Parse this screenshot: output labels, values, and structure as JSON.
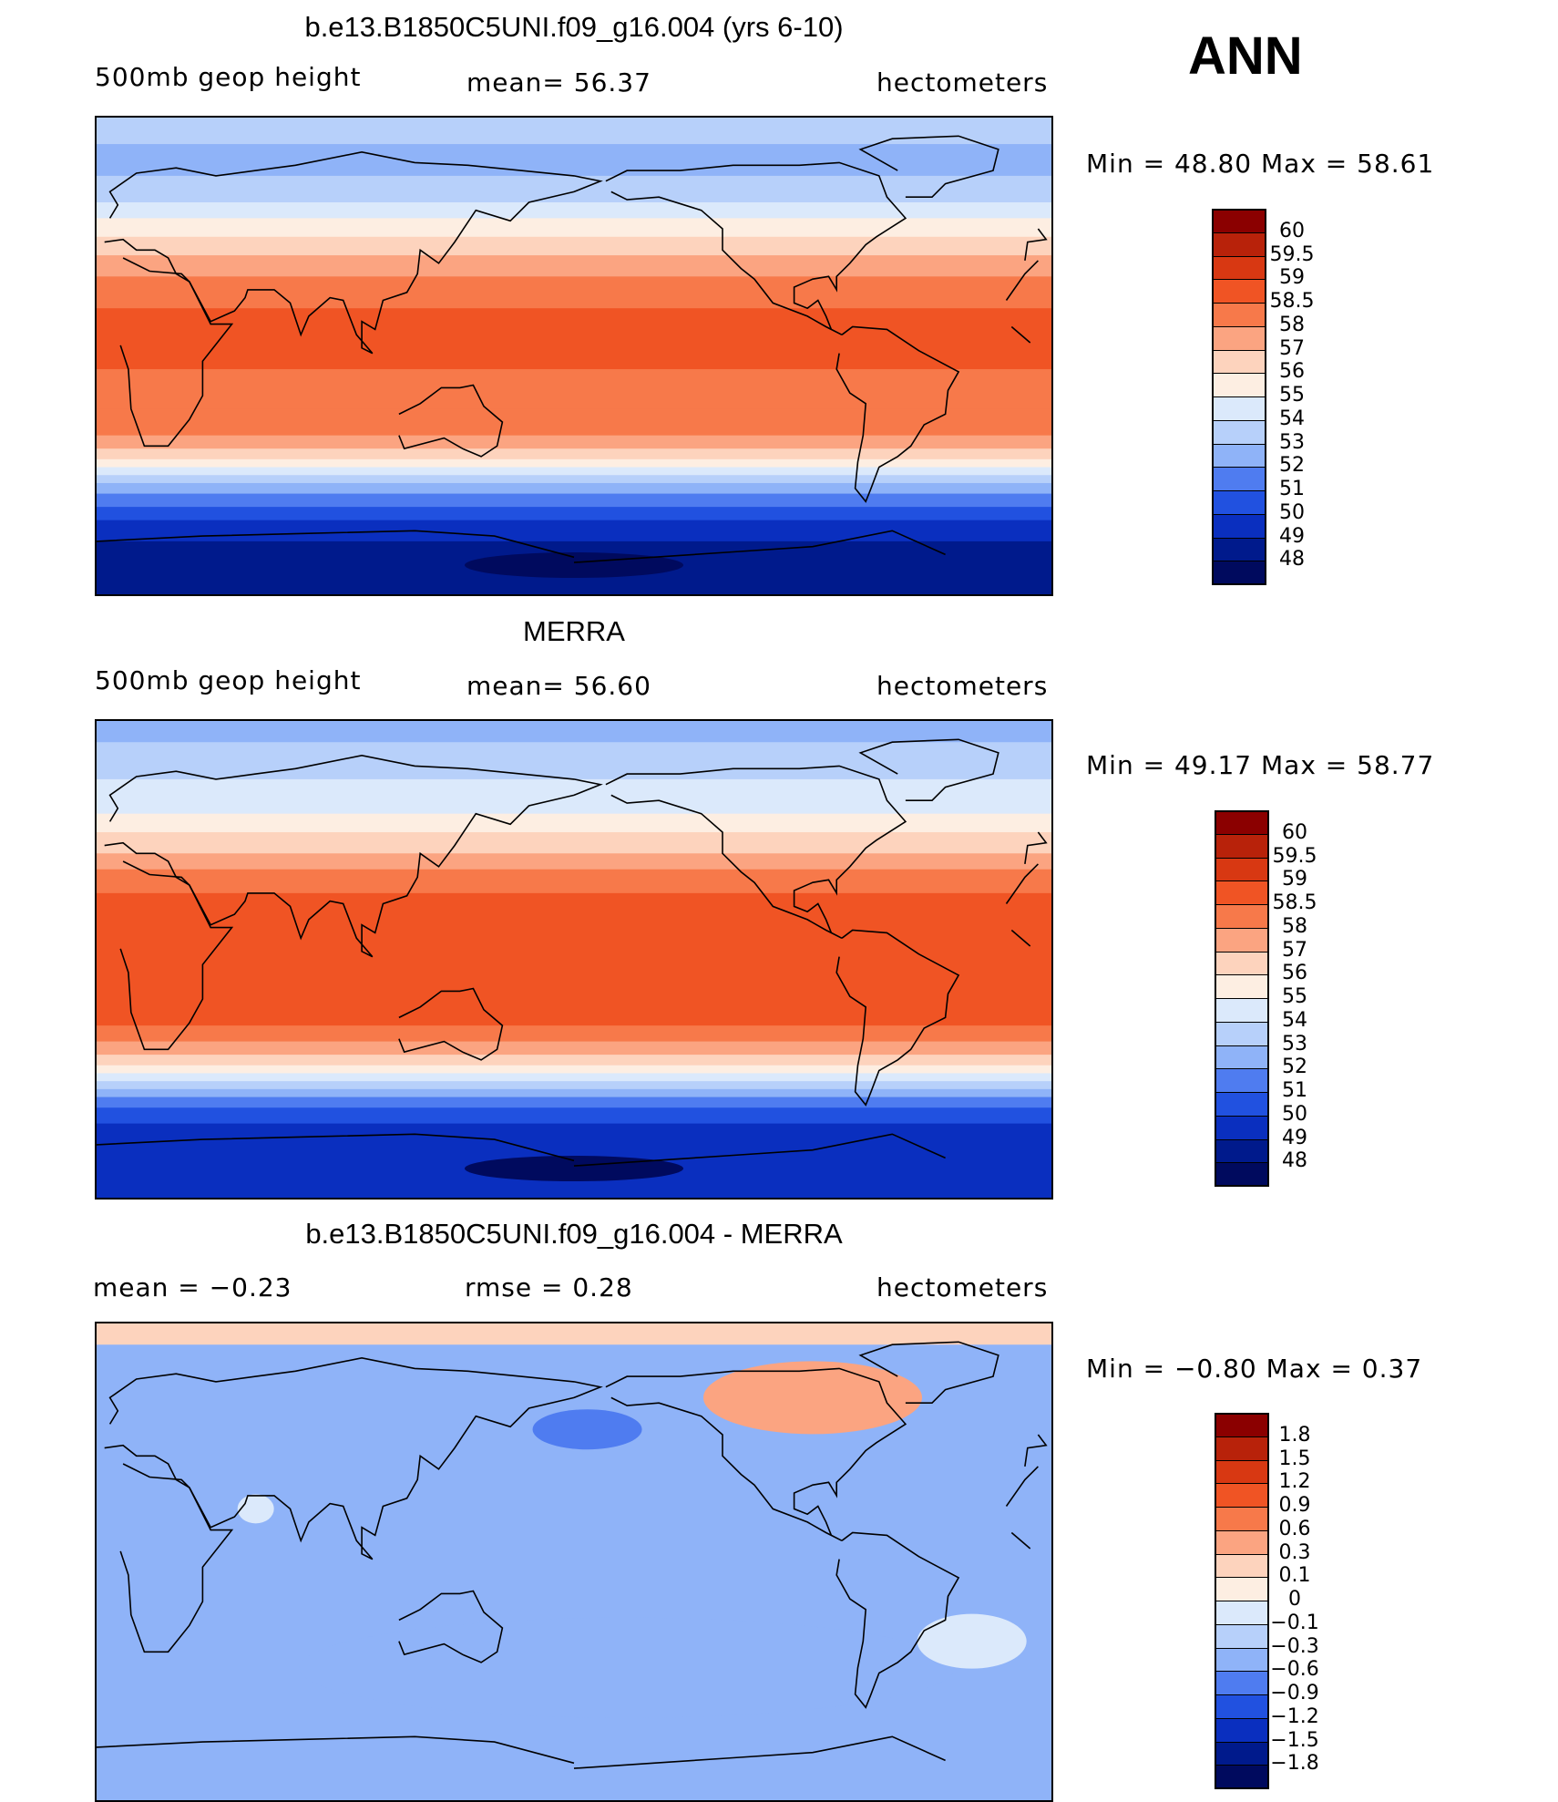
{
  "season": "ANN",
  "panels": [
    {
      "title": "b.e13.B1850C5UNI.f09_g16.004 (yrs 6-10)",
      "left_label": "500mb  geop  height",
      "mid_label": "mean=   56.37",
      "right_label": "hectometers",
      "minmax": "Min  =    48.80  Max  =    58.61",
      "legend_levels": [
        "60",
        "59.5",
        "59",
        "58.5",
        "58",
        "57",
        "56",
        "55",
        "54",
        "53",
        "52",
        "51",
        "50",
        "49",
        "48"
      ],
      "colors": [
        "#8b0000",
        "#b8220a",
        "#d83812",
        "#f05424",
        "#f7794a",
        "#fba481",
        "#fdd3bd",
        "#fdeee2",
        "#dbe9fb",
        "#b7d0fa",
        "#8fb3f8",
        "#4f7cf0",
        "#2151e0",
        "#0a2fbf",
        "#001a8c",
        "#000a5e"
      ],
      "bands": [
        {
          "lat": 90,
          "c": 9
        },
        {
          "lat": 80,
          "c": 10
        },
        {
          "lat": 68,
          "c": 9
        },
        {
          "lat": 58,
          "c": 8
        },
        {
          "lat": 52,
          "c": 7
        },
        {
          "lat": 45,
          "c": 6
        },
        {
          "lat": 38,
          "c": 5
        },
        {
          "lat": 30,
          "c": 4
        },
        {
          "lat": 18,
          "c": 3
        },
        {
          "lat": -5,
          "c": 4
        },
        {
          "lat": -20,
          "c": 4
        },
        {
          "lat": -30,
          "c": 5
        },
        {
          "lat": -35,
          "c": 6
        },
        {
          "lat": -39,
          "c": 7
        },
        {
          "lat": -42,
          "c": 8
        },
        {
          "lat": -45,
          "c": 9
        },
        {
          "lat": -48,
          "c": 10
        },
        {
          "lat": -52,
          "c": 11
        },
        {
          "lat": -57,
          "c": 12
        },
        {
          "lat": -62,
          "c": 13
        },
        {
          "lat": -70,
          "c": 14
        }
      ]
    },
    {
      "title": "MERRA",
      "left_label": "500mb  geop  height",
      "mid_label": "mean=   56.60",
      "right_label": "hectometers",
      "minmax": "Min  =    49.17  Max  =    58.77",
      "legend_levels": [
        "60",
        "59.5",
        "59",
        "58.5",
        "58",
        "57",
        "56",
        "55",
        "54",
        "53",
        "52",
        "51",
        "50",
        "49",
        "48"
      ],
      "colors": [
        "#8b0000",
        "#b8220a",
        "#d83812",
        "#f05424",
        "#f7794a",
        "#fba481",
        "#fdd3bd",
        "#fdeee2",
        "#dbe9fb",
        "#b7d0fa",
        "#8fb3f8",
        "#4f7cf0",
        "#2151e0",
        "#0a2fbf",
        "#001a8c",
        "#000a5e"
      ],
      "bands": [
        {
          "lat": 90,
          "c": 10
        },
        {
          "lat": 82,
          "c": 9
        },
        {
          "lat": 68,
          "c": 8
        },
        {
          "lat": 55,
          "c": 7
        },
        {
          "lat": 48,
          "c": 6
        },
        {
          "lat": 40,
          "c": 5
        },
        {
          "lat": 34,
          "c": 4
        },
        {
          "lat": 25,
          "c": 3
        },
        {
          "lat": -25,
          "c": 4
        },
        {
          "lat": -31,
          "c": 5
        },
        {
          "lat": -36,
          "c": 6
        },
        {
          "lat": -40,
          "c": 7
        },
        {
          "lat": -43,
          "c": 8
        },
        {
          "lat": -46,
          "c": 9
        },
        {
          "lat": -49,
          "c": 10
        },
        {
          "lat": -52,
          "c": 11
        },
        {
          "lat": -56,
          "c": 12
        },
        {
          "lat": -62,
          "c": 13
        }
      ]
    },
    {
      "title": "b.e13.B1850C5UNI.f09_g16.004 - MERRA",
      "left_label": "mean  =     −0.23",
      "mid_label": "rmse  =     0.28",
      "right_label": "hectometers",
      "minmax": "Min  =    −0.80  Max  =     0.37",
      "legend_levels": [
        "1.8",
        "1.5",
        "1.2",
        "0.9",
        "0.6",
        "0.3",
        "0.1",
        "0",
        "−0.1",
        "−0.3",
        "−0.6",
        "−0.9",
        "−1.2",
        "−1.5",
        "−1.8"
      ],
      "colors": [
        "#8b0000",
        "#b8220a",
        "#d83812",
        "#f05424",
        "#f7794a",
        "#fba481",
        "#fdd3bd",
        "#fdeee2",
        "#dbe9fb",
        "#b7d0fa",
        "#8fb3f8",
        "#4f7cf0",
        "#2151e0",
        "#0a2fbf",
        "#001a8c",
        "#000a5e"
      ],
      "bands": [
        {
          "lat": 90,
          "c": 6
        },
        {
          "lat": 82,
          "c": 10
        },
        {
          "lat": -90,
          "c": 10
        }
      ]
    }
  ],
  "chart_data": [
    {
      "type": "heatmap",
      "title": "b.e13.B1850C5UNI.f09_g16.004 (yrs 6-10)",
      "variable": "500mb geop height",
      "units": "hectometers",
      "mean": 56.37,
      "min": 48.8,
      "max": 58.61,
      "colorbar_levels": [
        60,
        59.5,
        59,
        58.5,
        58,
        57,
        56,
        55,
        54,
        53,
        52,
        51,
        50,
        49,
        48
      ]
    },
    {
      "type": "heatmap",
      "title": "MERRA",
      "variable": "500mb geop height",
      "units": "hectometers",
      "mean": 56.6,
      "min": 49.17,
      "max": 58.77,
      "colorbar_levels": [
        60,
        59.5,
        59,
        58.5,
        58,
        57,
        56,
        55,
        54,
        53,
        52,
        51,
        50,
        49,
        48
      ]
    },
    {
      "type": "heatmap",
      "title": "b.e13.B1850C5UNI.f09_g16.004 - MERRA",
      "units": "hectometers",
      "mean": -0.23,
      "rmse": 0.28,
      "min": -0.8,
      "max": 0.37,
      "colorbar_levels": [
        1.8,
        1.5,
        1.2,
        0.9,
        0.6,
        0.3,
        0.1,
        0,
        -0.1,
        -0.3,
        -0.6,
        -0.9,
        -1.2,
        -1.5,
        -1.8
      ]
    }
  ]
}
